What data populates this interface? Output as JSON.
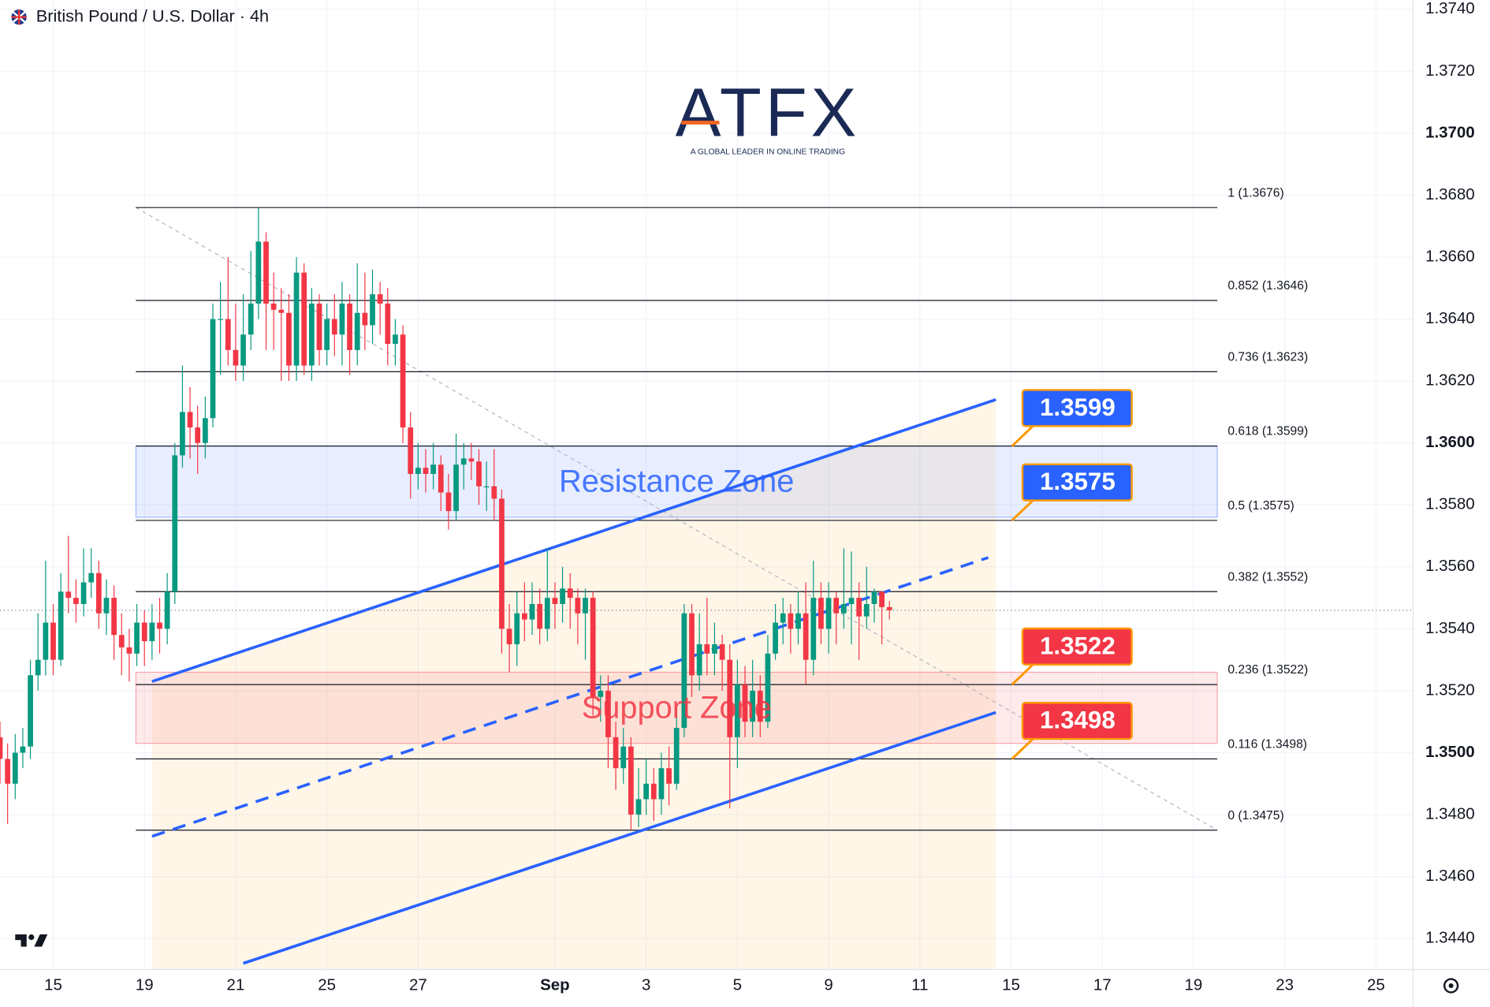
{
  "chart_data": {
    "type": "candlestick",
    "title": "British Pound / U.S. Dollar · 4h",
    "watermark": {
      "logo": "ATFX",
      "tagline": "A GLOBAL LEADER IN ONLINE TRADING"
    },
    "up_color": "#089981",
    "down_color": "#f23645",
    "open": [
      1.3505,
      1.3498,
      1.349,
      1.35,
      1.3502,
      1.3525,
      1.353,
      1.3542,
      1.353,
      1.3552,
      1.355,
      1.3548,
      1.3555,
      1.3558,
      1.3545,
      1.355,
      1.3538,
      1.3534,
      1.3532,
      1.3542,
      1.3536,
      1.3542,
      1.354,
      1.3552,
      1.3596,
      1.361,
      1.3605,
      1.36,
      1.3608,
      1.364,
      1.364,
      1.363,
      1.3625,
      1.3635,
      1.3645,
      1.3665,
      1.3645,
      1.3643,
      1.3642,
      1.3625,
      1.3655,
      1.3625,
      1.3645,
      1.363,
      1.364,
      1.3635,
      1.3645,
      1.363,
      1.3642,
      1.3638,
      1.3648,
      1.3645,
      1.3632,
      1.3635,
      1.3605,
      1.359,
      1.3592,
      1.359,
      1.3593,
      1.3584,
      1.3578,
      1.3593,
      1.3595,
      1.3594,
      1.3586,
      1.3586,
      1.3582,
      1.354,
      1.3535,
      1.3545,
      1.3543,
      1.3548,
      1.354,
      1.355,
      1.3548,
      1.3553,
      1.355,
      1.3545,
      1.355,
      1.3518,
      1.352,
      1.3505,
      1.3495,
      1.3502,
      1.348,
      1.3485,
      1.349,
      1.3485,
      1.3495,
      1.349,
      1.3508,
      1.3545,
      1.3525,
      1.3535,
      1.3532,
      1.3535,
      1.353,
      1.3505,
      1.3522,
      1.351,
      1.352,
      1.351,
      1.3532,
      1.3542,
      1.3545,
      1.354,
      1.3545,
      1.353,
      1.355,
      1.354,
      1.355,
      1.3545,
      1.3548,
      1.355,
      1.3544,
      1.3548,
      1.3552,
      1.3547
    ],
    "high": [
      1.351,
      1.3503,
      1.3506,
      1.3508,
      1.353,
      1.3545,
      1.3562,
      1.3548,
      1.3558,
      1.357,
      1.3556,
      1.3566,
      1.3566,
      1.3562,
      1.3556,
      1.3554,
      1.3545,
      1.354,
      1.3548,
      1.3546,
      1.3548,
      1.355,
      1.3558,
      1.36,
      1.3625,
      1.3618,
      1.3612,
      1.3615,
      1.3645,
      1.3652,
      1.366,
      1.3645,
      1.3648,
      1.3662,
      1.3676,
      1.3668,
      1.3655,
      1.365,
      1.3648,
      1.366,
      1.3658,
      1.365,
      1.3648,
      1.3645,
      1.3648,
      1.3652,
      1.3648,
      1.3658,
      1.3655,
      1.3656,
      1.3652,
      1.365,
      1.364,
      1.3638,
      1.361,
      1.36,
      1.3598,
      1.36,
      1.3596,
      1.359,
      1.3603,
      1.36,
      1.36,
      1.3598,
      1.3594,
      1.3598,
      1.3585,
      1.3548,
      1.3552,
      1.3555,
      1.3555,
      1.3553,
      1.3566,
      1.3555,
      1.356,
      1.3558,
      1.3553,
      1.3553,
      1.3552,
      1.3525,
      1.3525,
      1.351,
      1.3508,
      1.3505,
      1.3495,
      1.3498,
      1.3495,
      1.35,
      1.3502,
      1.3515,
      1.3548,
      1.3548,
      1.3545,
      1.355,
      1.3542,
      1.3538,
      1.3535,
      1.353,
      1.3528,
      1.353,
      1.3525,
      1.3538,
      1.3548,
      1.355,
      1.3548,
      1.3552,
      1.3555,
      1.3562,
      1.3555,
      1.3555,
      1.3552,
      1.3566,
      1.3565,
      1.3555,
      1.356,
      1.3553,
      1.3552,
      1.3549
    ],
    "low": [
      1.349,
      1.3477,
      1.3485,
      1.3495,
      1.3498,
      1.352,
      1.3525,
      1.3525,
      1.3528,
      1.3545,
      1.3542,
      1.3544,
      1.355,
      1.354,
      1.3538,
      1.353,
      1.3525,
      1.3523,
      1.3528,
      1.3528,
      1.353,
      1.3532,
      1.3535,
      1.3548,
      1.3592,
      1.3595,
      1.359,
      1.3595,
      1.3605,
      1.3622,
      1.3625,
      1.362,
      1.362,
      1.363,
      1.364,
      1.363,
      1.363,
      1.362,
      1.362,
      1.362,
      1.3622,
      1.362,
      1.3625,
      1.3625,
      1.3628,
      1.3625,
      1.3622,
      1.3625,
      1.363,
      1.3632,
      1.3635,
      1.3625,
      1.3625,
      1.36,
      1.3582,
      1.3585,
      1.3584,
      1.3585,
      1.3578,
      1.3572,
      1.3575,
      1.3585,
      1.3588,
      1.358,
      1.3578,
      1.3575,
      1.3532,
      1.3526,
      1.3528,
      1.3536,
      1.3538,
      1.3535,
      1.3536,
      1.354,
      1.3542,
      1.354,
      1.3535,
      1.353,
      1.3512,
      1.351,
      1.3495,
      1.3488,
      1.349,
      1.3475,
      1.3476,
      1.348,
      1.3478,
      1.348,
      1.3483,
      1.3488,
      1.3505,
      1.3518,
      1.352,
      1.3525,
      1.3525,
      1.352,
      1.3482,
      1.3495,
      1.3505,
      1.3505,
      1.3505,
      1.3508,
      1.353,
      1.3535,
      1.3532,
      1.3535,
      1.3522,
      1.3525,
      1.3535,
      1.3532,
      1.3535,
      1.354,
      1.3535,
      1.353,
      1.354,
      1.3542,
      1.3535,
      1.3543
    ],
    "close": [
      1.3498,
      1.349,
      1.35,
      1.3502,
      1.3525,
      1.353,
      1.3542,
      1.353,
      1.3552,
      1.355,
      1.3548,
      1.3555,
      1.3558,
      1.3545,
      1.355,
      1.3538,
      1.3534,
      1.3532,
      1.3542,
      1.3536,
      1.3542,
      1.354,
      1.3552,
      1.3596,
      1.361,
      1.3605,
      1.36,
      1.3608,
      1.364,
      1.364,
      1.363,
      1.3625,
      1.3635,
      1.3645,
      1.3665,
      1.3645,
      1.3643,
      1.3642,
      1.3625,
      1.3655,
      1.3625,
      1.3645,
      1.363,
      1.364,
      1.3635,
      1.3645,
      1.363,
      1.3642,
      1.3638,
      1.3648,
      1.3645,
      1.3632,
      1.3635,
      1.3605,
      1.359,
      1.3592,
      1.359,
      1.3593,
      1.3584,
      1.3578,
      1.3593,
      1.3595,
      1.3594,
      1.3586,
      1.3586,
      1.3582,
      1.354,
      1.3535,
      1.3545,
      1.3543,
      1.3548,
      1.354,
      1.355,
      1.3548,
      1.3553,
      1.355,
      1.3545,
      1.355,
      1.3518,
      1.352,
      1.3505,
      1.3495,
      1.3502,
      1.348,
      1.3485,
      1.349,
      1.3485,
      1.3495,
      1.349,
      1.3508,
      1.3545,
      1.3525,
      1.3535,
      1.3532,
      1.3535,
      1.353,
      1.3505,
      1.3522,
      1.351,
      1.352,
      1.351,
      1.3532,
      1.3542,
      1.3545,
      1.354,
      1.3545,
      1.353,
      1.355,
      1.354,
      1.355,
      1.3545,
      1.3548,
      1.355,
      1.3544,
      1.3548,
      1.3552,
      1.3547,
      1.3546
    ],
    "xlim": [
      0,
      186
    ],
    "xticks": [
      {
        "value": 7,
        "label": "15"
      },
      {
        "value": 19,
        "label": "19"
      },
      {
        "value": 31,
        "label": "21"
      },
      {
        "value": 43,
        "label": "25"
      },
      {
        "value": 55,
        "label": "27"
      },
      {
        "value": 73,
        "label": "Sep"
      },
      {
        "value": 85,
        "label": "3"
      },
      {
        "value": 97,
        "label": "5"
      },
      {
        "value": 109,
        "label": "9"
      },
      {
        "value": 121,
        "label": "11"
      },
      {
        "value": 133,
        "label": "15"
      },
      {
        "value": 145,
        "label": "17"
      },
      {
        "value": 157,
        "label": "19"
      },
      {
        "value": 169,
        "label": "23"
      },
      {
        "value": 181,
        "label": "25"
      }
    ],
    "ylim": [
      1.343,
      1.3743
    ],
    "yticks": [
      {
        "value": 1.344,
        "label": "1.3440"
      },
      {
        "value": 1.346,
        "label": "1.3460"
      },
      {
        "value": 1.348,
        "label": "1.3480"
      },
      {
        "value": 1.35,
        "label": "1.3500"
      },
      {
        "value": 1.352,
        "label": "1.3520"
      },
      {
        "value": 1.354,
        "label": "1.3540"
      },
      {
        "value": 1.356,
        "label": "1.3560"
      },
      {
        "value": 1.358,
        "label": "1.3580"
      },
      {
        "value": 1.36,
        "label": "1.3600"
      },
      {
        "value": 1.362,
        "label": "1.3620"
      },
      {
        "value": 1.364,
        "label": "1.3640"
      },
      {
        "value": 1.366,
        "label": "1.3660"
      },
      {
        "value": 1.368,
        "label": "1.3680"
      },
      {
        "value": 1.37,
        "label": "1.3700"
      },
      {
        "value": 1.372,
        "label": "1.3720"
      },
      {
        "value": 1.374,
        "label": "1.3740"
      }
    ],
    "grid": true,
    "fib_levels": [
      {
        "value": 1.3676,
        "label": "1 (1.3676)"
      },
      {
        "value": 1.3646,
        "label": "0.852 (1.3646)"
      },
      {
        "value": 1.3623,
        "label": "0.736 (1.3623)"
      },
      {
        "value": 1.3599,
        "label": "0.618 (1.3599)"
      },
      {
        "value": 1.3575,
        "label": "0.5 (1.3575)"
      },
      {
        "value": 1.3552,
        "label": "0.382 (1.3552)"
      },
      {
        "value": 1.3522,
        "label": "0.236 (1.3522)"
      },
      {
        "value": 1.3498,
        "label": "0.116 (1.3498)"
      },
      {
        "value": 1.3475,
        "label": "0 (1.3475)"
      }
    ],
    "zones": [
      {
        "label": "Resistance Zone",
        "from": 1.3576,
        "to": 1.3599,
        "color": "#2962ff"
      },
      {
        "label": "Support Zone",
        "from": 1.3503,
        "to": 1.3526,
        "color": "#f23645"
      }
    ],
    "trendlines": [
      {
        "x": [
          20,
          131
        ],
        "y": [
          1.3523,
          1.3614
        ],
        "color": "#2962ff",
        "dashed": false
      },
      {
        "x": [
          20,
          130
        ],
        "y": [
          1.3473,
          1.3563
        ],
        "color": "#2962ff",
        "dashed": true
      },
      {
        "x": [
          32,
          131
        ],
        "y": [
          1.3432,
          1.3513
        ],
        "color": "#2962ff",
        "dashed": false
      }
    ],
    "price_labels": [
      {
        "value": 1.3599,
        "color": "#2962ff"
      },
      {
        "value": 1.3575,
        "color": "#2962ff"
      },
      {
        "value": 1.3522,
        "color": "#f23645"
      },
      {
        "value": 1.3498,
        "color": "#f23645"
      }
    ]
  }
}
